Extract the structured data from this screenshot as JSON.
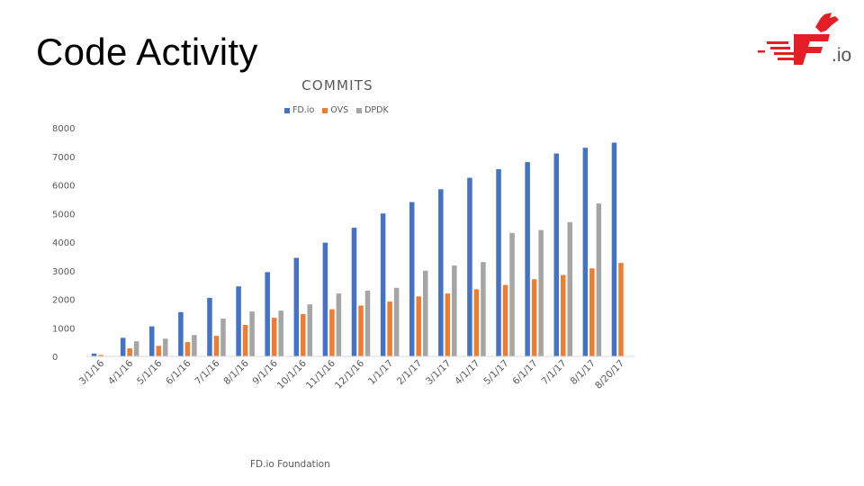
{
  "slide": {
    "title": "Code Activity",
    "footer": "FD.io Foundation",
    "logo_text": ".io"
  },
  "colors": {
    "fdio": "#4472c4",
    "ovs": "#ed7d31",
    "dpdk": "#a5a5a5",
    "logo_red": "#e31e24"
  },
  "chart_data": {
    "type": "bar",
    "title": "COMMITS",
    "legend_position": "top",
    "grid": false,
    "ylim": [
      0,
      8000
    ],
    "yticks": [
      0,
      1000,
      2000,
      3000,
      4000,
      5000,
      6000,
      7000,
      8000
    ],
    "categories": [
      "3/1/16",
      "4/1/16",
      "5/1/16",
      "6/1/16",
      "7/1/16",
      "8/1/16",
      "9/1/16",
      "10/1/16",
      "11/1/16",
      "12/1/16",
      "1/1/17",
      "2/1/17",
      "3/1/17",
      "4/1/17",
      "5/1/17",
      "6/1/17",
      "7/1/17",
      "8/1/17",
      "8/20/17"
    ],
    "series": [
      {
        "name": "FD.io",
        "values": [
          100,
          650,
          1050,
          1550,
          2050,
          2450,
          2950,
          3450,
          3980,
          4500,
          5000,
          5400,
          5850,
          6250,
          6550,
          6800,
          7100,
          7300,
          7480
        ]
      },
      {
        "name": "OVS",
        "values": [
          50,
          280,
          370,
          500,
          720,
          1100,
          1350,
          1480,
          1650,
          1780,
          1920,
          2100,
          2200,
          2350,
          2500,
          2700,
          2850,
          3080,
          3270
        ]
      },
      {
        "name": "DPDK",
        "values": [
          0,
          530,
          620,
          750,
          1320,
          1570,
          1600,
          1820,
          2200,
          2300,
          2400,
          3000,
          3180,
          3300,
          4320,
          4420,
          4700,
          5350,
          0
        ]
      }
    ]
  }
}
